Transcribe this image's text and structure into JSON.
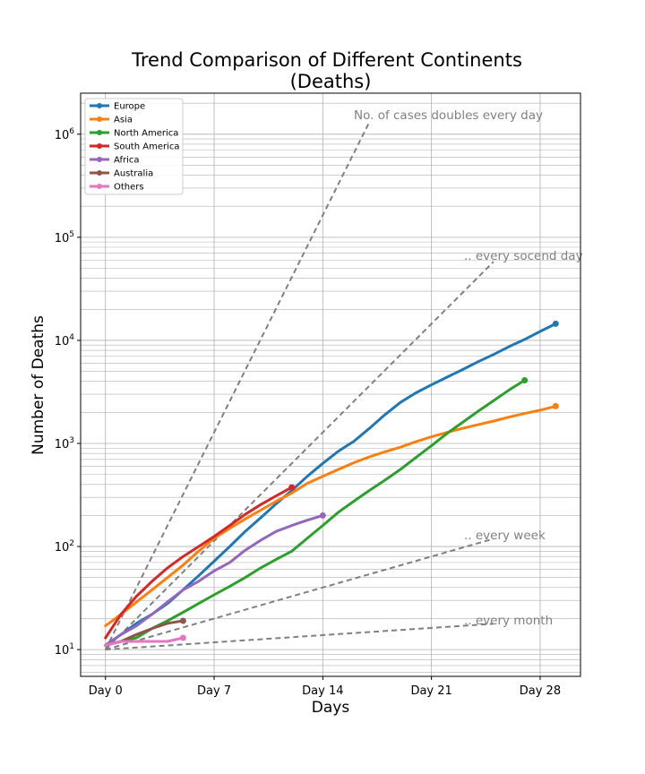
{
  "chart_data": {
    "type": "line",
    "title": "Trend Comparison of Different Continents",
    "subtitle": "(Deaths)",
    "xlabel": "Days",
    "ylabel": "Number of Deaths",
    "xlim": [
      -1.6,
      30.6
    ],
    "ylim": [
      5.5,
      2500000
    ],
    "yscale": "log",
    "grid": true,
    "legend_position": "top-left",
    "x_ticks": [
      0,
      7,
      14,
      21,
      28
    ],
    "x_tick_labels": [
      "Day 0",
      "Day 7",
      "Day 14",
      "Day 21",
      "Day 28"
    ],
    "y_ticks": [
      10,
      100,
      1000,
      10000,
      100000,
      1000000
    ],
    "y_tick_bases": [
      "10",
      "10",
      "10",
      "10",
      "10",
      "10"
    ],
    "y_tick_exponents": [
      "1",
      "2",
      "3",
      "4",
      "5",
      "6"
    ],
    "series": [
      {
        "name": "Europe",
        "color": "#1f77b4",
        "x": [
          0,
          1,
          2,
          3,
          4,
          5,
          6,
          7,
          8,
          9,
          10,
          11,
          12,
          13,
          14,
          15,
          16,
          17,
          18,
          19,
          20,
          21,
          22,
          23,
          24,
          25,
          26,
          27,
          28,
          29
        ],
        "y": [
          11,
          14,
          18,
          22,
          28,
          38,
          52,
          72,
          100,
          140,
          190,
          260,
          350,
          480,
          640,
          840,
          1050,
          1400,
          1900,
          2500,
          3100,
          3700,
          4400,
          5200,
          6200,
          7300,
          8700,
          10200,
          12200,
          14500
        ]
      },
      {
        "name": "Asia",
        "color": "#ff7f0e",
        "x": [
          0,
          1,
          2,
          3,
          4,
          5,
          6,
          7,
          8,
          9,
          10,
          11,
          12,
          13,
          14,
          15,
          16,
          17,
          18,
          19,
          20,
          21,
          22,
          23,
          24,
          25,
          26,
          27,
          28,
          29
        ],
        "y": [
          17,
          22,
          29,
          38,
          50,
          66,
          90,
          120,
          150,
          185,
          225,
          275,
          330,
          410,
          480,
          560,
          650,
          740,
          830,
          920,
          1040,
          1160,
          1280,
          1400,
          1520,
          1650,
          1800,
          1950,
          2100,
          2300
        ]
      },
      {
        "name": "North America",
        "color": "#2ca02c",
        "x": [
          0,
          1,
          2,
          3,
          4,
          5,
          6,
          7,
          8,
          9,
          10,
          11,
          12,
          13,
          14,
          15,
          16,
          17,
          18,
          19,
          20,
          21,
          22,
          23,
          24,
          25,
          26,
          27
        ],
        "y": [
          11,
          12,
          13,
          16,
          19,
          23,
          28,
          34,
          41,
          50,
          62,
          75,
          90,
          120,
          160,
          215,
          275,
          350,
          440,
          560,
          730,
          950,
          1250,
          1600,
          2050,
          2600,
          3300,
          4100
        ]
      },
      {
        "name": "South America",
        "color": "#d62728",
        "x": [
          0,
          1,
          2,
          3,
          4,
          5,
          6,
          7,
          8,
          9,
          10,
          11,
          12
        ],
        "y": [
          13,
          22,
          33,
          46,
          62,
          80,
          100,
          125,
          160,
          205,
          255,
          310,
          375
        ]
      },
      {
        "name": "Africa",
        "color": "#9467bd",
        "x": [
          0,
          1,
          2,
          3,
          4,
          5,
          6,
          7,
          8,
          9,
          10,
          11,
          12,
          13,
          14
        ],
        "y": [
          11,
          14,
          17,
          22,
          29,
          38,
          46,
          58,
          70,
          92,
          115,
          140,
          160,
          180,
          200
        ]
      },
      {
        "name": "Australia",
        "color": "#8c564b",
        "x": [
          0,
          1,
          2,
          3,
          4,
          5
        ],
        "y": [
          11,
          12,
          14,
          16,
          18,
          19
        ]
      },
      {
        "name": "Others",
        "color": "#e377c2",
        "x": [
          0,
          1,
          2,
          3,
          4,
          5
        ],
        "y": [
          11,
          12,
          12,
          12,
          12,
          13
        ]
      }
    ],
    "reference_lines": [
      {
        "label": "No. of cases doubles every day",
        "x": [
          0,
          17
        ],
        "y": [
          10,
          1310720
        ],
        "color": "#808080"
      },
      {
        "label": ".. every socend day",
        "x": [
          0,
          25
        ],
        "y": [
          10,
          57926
        ],
        "color": "#808080"
      },
      {
        "label": ".. every week",
        "x": [
          0,
          25
        ],
        "y": [
          10,
          118.9
        ],
        "color": "#808080"
      },
      {
        "label": ".. every month",
        "x": [
          0,
          25
        ],
        "y": [
          10,
          17.8
        ],
        "color": "#808080"
      }
    ]
  }
}
